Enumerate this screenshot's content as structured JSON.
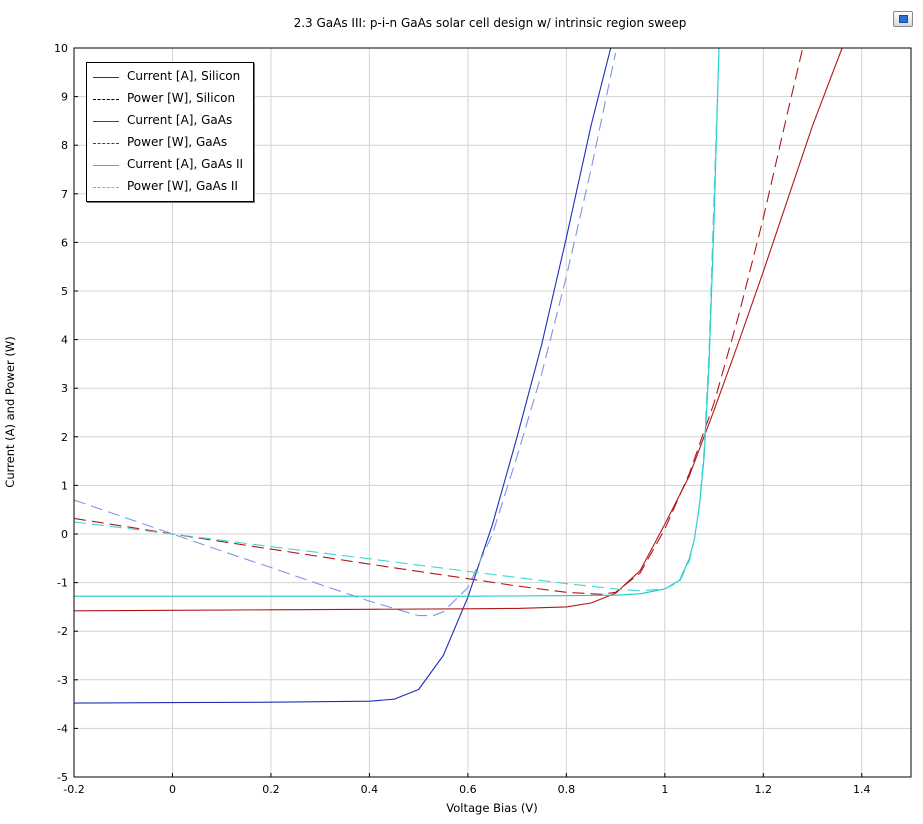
{
  "chart_data": {
    "type": "line",
    "title": "2.3 GaAs III: p-i-n GaAs solar cell design w/ intrinsic region sweep",
    "xlabel": "Voltage Bias (V)",
    "ylabel": "Current (A) and Power (W)",
    "xlim": [
      -0.2,
      1.5
    ],
    "ylim": [
      -5,
      10
    ],
    "xticks": [
      "-0.2",
      "0",
      "0.2",
      "0.4",
      "0.6",
      "0.8",
      "1",
      "1.2",
      "1.4"
    ],
    "yticks": [
      "-5",
      "-4",
      "-3",
      "-2",
      "-1",
      "0",
      "1",
      "2",
      "3",
      "4",
      "5",
      "6",
      "7",
      "8",
      "9",
      "10"
    ],
    "grid": true,
    "legend_position": "top-left",
    "series": [
      {
        "name": "Current [A], Silicon",
        "color": "#1f2fb8",
        "dash": "solid",
        "x": [
          -0.2,
          0,
          0.2,
          0.3,
          0.4,
          0.45,
          0.5,
          0.55,
          0.6,
          0.65,
          0.7,
          0.75,
          0.8,
          0.85,
          0.89
        ],
        "y": [
          -3.48,
          -3.47,
          -3.46,
          -3.45,
          -3.44,
          -3.4,
          -3.2,
          -2.5,
          -1.3,
          0.2,
          2.0,
          3.9,
          6.1,
          8.4,
          10.0
        ]
      },
      {
        "name": "Power [W], Silicon",
        "color": "#7e97e0",
        "dash": "long",
        "x": [
          -0.2,
          0,
          0.1,
          0.2,
          0.3,
          0.4,
          0.45,
          0.5,
          0.53,
          0.55,
          0.6,
          0.65,
          0.7,
          0.75,
          0.8,
          0.85,
          0.9
        ],
        "y": [
          0.7,
          0.0,
          -0.35,
          -0.69,
          -1.04,
          -1.38,
          -1.53,
          -1.68,
          -1.68,
          -1.6,
          -1.1,
          0.0,
          1.6,
          3.3,
          5.3,
          7.5,
          9.9
        ]
      },
      {
        "name": "Current [A], GaAs",
        "color": "#b01818",
        "dash": "solid",
        "x": [
          -0.2,
          0,
          0.2,
          0.4,
          0.6,
          0.7,
          0.8,
          0.85,
          0.9,
          0.95,
          1.0,
          1.05,
          1.1,
          1.15,
          1.2,
          1.25,
          1.3,
          1.36
        ],
        "y": [
          -1.58,
          -1.57,
          -1.56,
          -1.55,
          -1.54,
          -1.53,
          -1.5,
          -1.42,
          -1.22,
          -0.75,
          0.2,
          1.2,
          2.55,
          3.95,
          5.4,
          6.9,
          8.4,
          10.0
        ]
      },
      {
        "name": "Power [W], GaAs",
        "color": "#b01818",
        "dash": "long",
        "x": [
          -0.2,
          0,
          0.2,
          0.4,
          0.6,
          0.7,
          0.8,
          0.87,
          0.9,
          0.95,
          1.0,
          1.05,
          1.1,
          1.15,
          1.2,
          1.25,
          1.28
        ],
        "y": [
          0.32,
          0.0,
          -0.31,
          -0.62,
          -0.92,
          -1.07,
          -1.2,
          -1.24,
          -1.2,
          -0.8,
          0.1,
          1.25,
          2.7,
          4.5,
          6.5,
          8.7,
          10.0
        ]
      },
      {
        "name": "Current [A], GaAs II",
        "color": "#1ec8c8",
        "dash": "solid",
        "x": [
          -0.2,
          0,
          0.2,
          0.4,
          0.6,
          0.8,
          0.9,
          0.95,
          1.0,
          1.03,
          1.05,
          1.06,
          1.07,
          1.08,
          1.09,
          1.1,
          1.11
        ],
        "y": [
          -1.28,
          -1.28,
          -1.28,
          -1.28,
          -1.28,
          -1.27,
          -1.26,
          -1.23,
          -1.13,
          -0.95,
          -0.5,
          -0.1,
          0.55,
          1.6,
          3.5,
          6.5,
          10.0
        ]
      },
      {
        "name": "Power [W], GaAs II",
        "color": "#3fd6d6",
        "dash": "long",
        "x": [
          -0.2,
          0,
          0.2,
          0.4,
          0.6,
          0.8,
          0.9,
          0.95,
          1.0,
          1.03,
          1.05,
          1.06,
          1.07,
          1.08,
          1.09,
          1.1,
          1.11
        ],
        "y": [
          0.25,
          0.0,
          -0.26,
          -0.51,
          -0.77,
          -1.02,
          -1.13,
          -1.17,
          -1.13,
          -0.98,
          -0.55,
          -0.12,
          0.6,
          1.75,
          3.8,
          7.0,
          10.0
        ]
      }
    ]
  }
}
